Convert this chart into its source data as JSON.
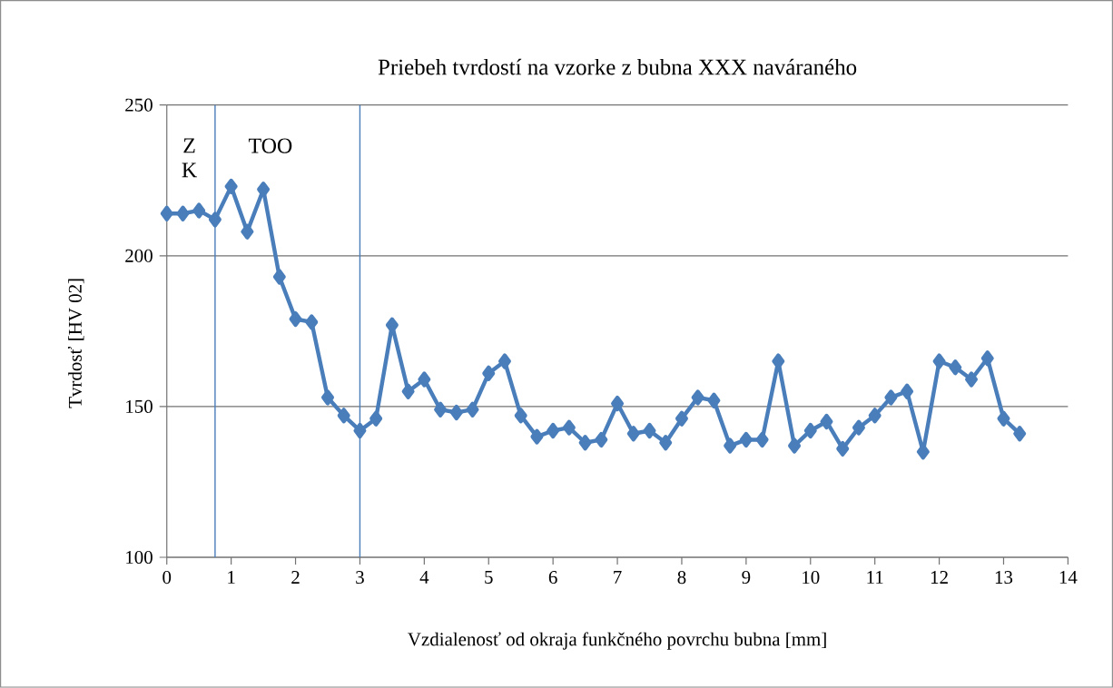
{
  "chart_data": {
    "type": "line",
    "title": "Priebeh tvrdostí na vzorke z bubna XXX naváraného",
    "xlabel": "Vzdialenosť od okraja funkčného povrchu bubna [mm]",
    "ylabel": "Tvrdosť [HV 02]",
    "x": [
      0,
      0.25,
      0.5,
      0.75,
      1,
      1.25,
      1.5,
      1.75,
      2,
      2.25,
      2.5,
      2.75,
      3,
      3.25,
      3.5,
      3.75,
      4,
      4.25,
      4.5,
      4.75,
      5,
      5.25,
      5.5,
      5.75,
      6,
      6.25,
      6.5,
      6.75,
      7,
      7.25,
      7.5,
      7.75,
      8,
      8.25,
      8.5,
      8.75,
      9,
      9.25,
      9.5,
      9.75,
      10,
      10.25,
      10.5,
      10.75,
      11,
      11.25,
      11.5,
      11.75,
      12,
      12.25,
      12.5,
      12.75,
      13,
      13.25
    ],
    "series": [
      {
        "color": "#4a7ebb",
        "values": [
          214,
          214,
          215,
          212,
          223,
          208,
          222,
          193,
          179,
          178,
          153,
          147,
          142,
          146,
          177,
          155,
          159,
          149,
          148,
          149,
          161,
          165,
          147,
          140,
          142,
          143,
          138,
          139,
          151,
          141,
          142,
          138,
          146,
          153,
          152,
          137,
          139,
          139,
          165,
          137,
          142,
          145,
          136,
          143,
          147,
          153,
          155,
          135,
          165,
          163,
          159,
          166,
          146,
          141
        ]
      }
    ],
    "xlim": [
      0,
      14
    ],
    "ylim": [
      100,
      250
    ],
    "xticks": [
      0,
      1,
      2,
      3,
      4,
      5,
      6,
      7,
      8,
      9,
      10,
      11,
      12,
      13,
      14
    ],
    "yticks": [
      100,
      150,
      200,
      250
    ],
    "grid": "y",
    "marker": "diamond",
    "line_style": "solid",
    "ref_lines": [
      {
        "axis": "x",
        "value": 0.75,
        "color": "#4a7ebb"
      },
      {
        "axis": "x",
        "value": 3,
        "color": "#4a7ebb"
      }
    ],
    "annotations": [
      "Z K",
      "TOO"
    ]
  }
}
